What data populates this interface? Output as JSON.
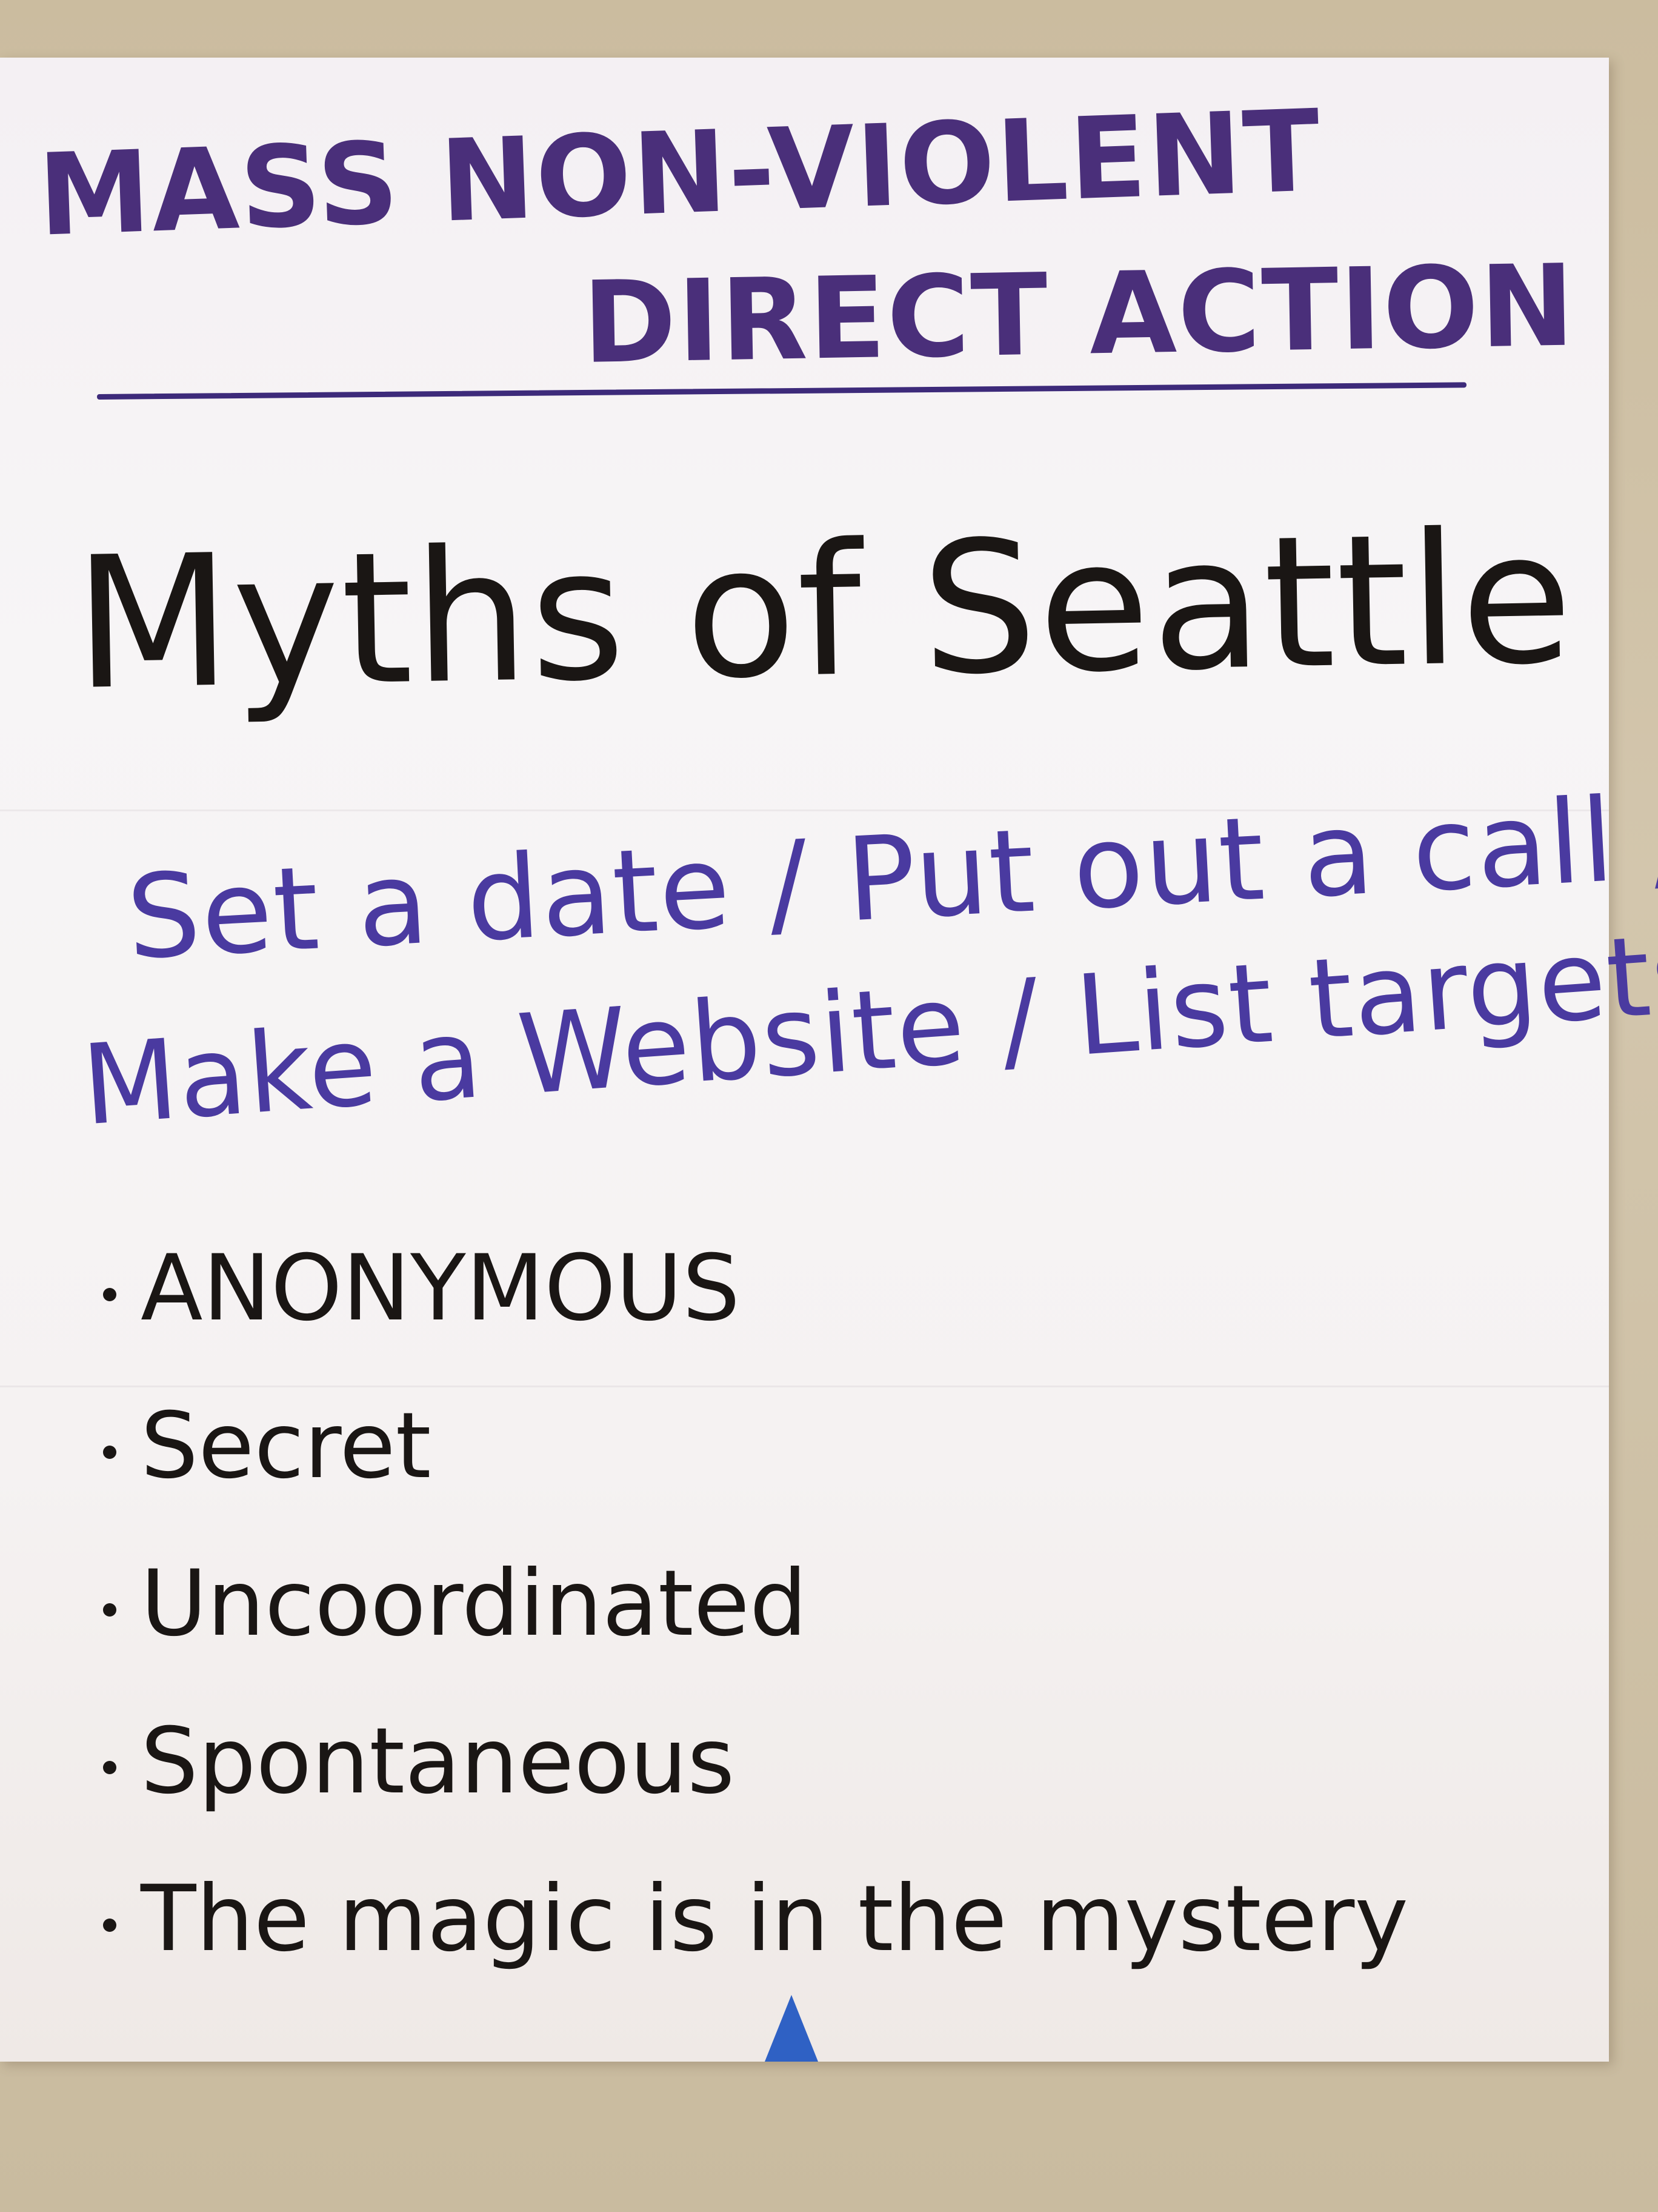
{
  "poster": {
    "title_line1": "MASS NON-VIOLENT",
    "title_line2": "DIRECT ACTION",
    "heading": "Myths of Seattle",
    "subtitle_line1": "Set a date / Put out a call /",
    "subtitle_line2": "Make a Website / List targets",
    "bullets": [
      "ANONYMOUS",
      "Secret",
      "Uncoordinated",
      "Spontaneous",
      "The magic is in the mystery"
    ]
  },
  "colors": {
    "title_ink": "#4a2f7a",
    "subtitle_ink": "#4a3aa0",
    "body_ink": "#1a1614",
    "paper": "#f6f3f4",
    "wall": "#cdbfa6",
    "tape": "#2f61c4"
  }
}
